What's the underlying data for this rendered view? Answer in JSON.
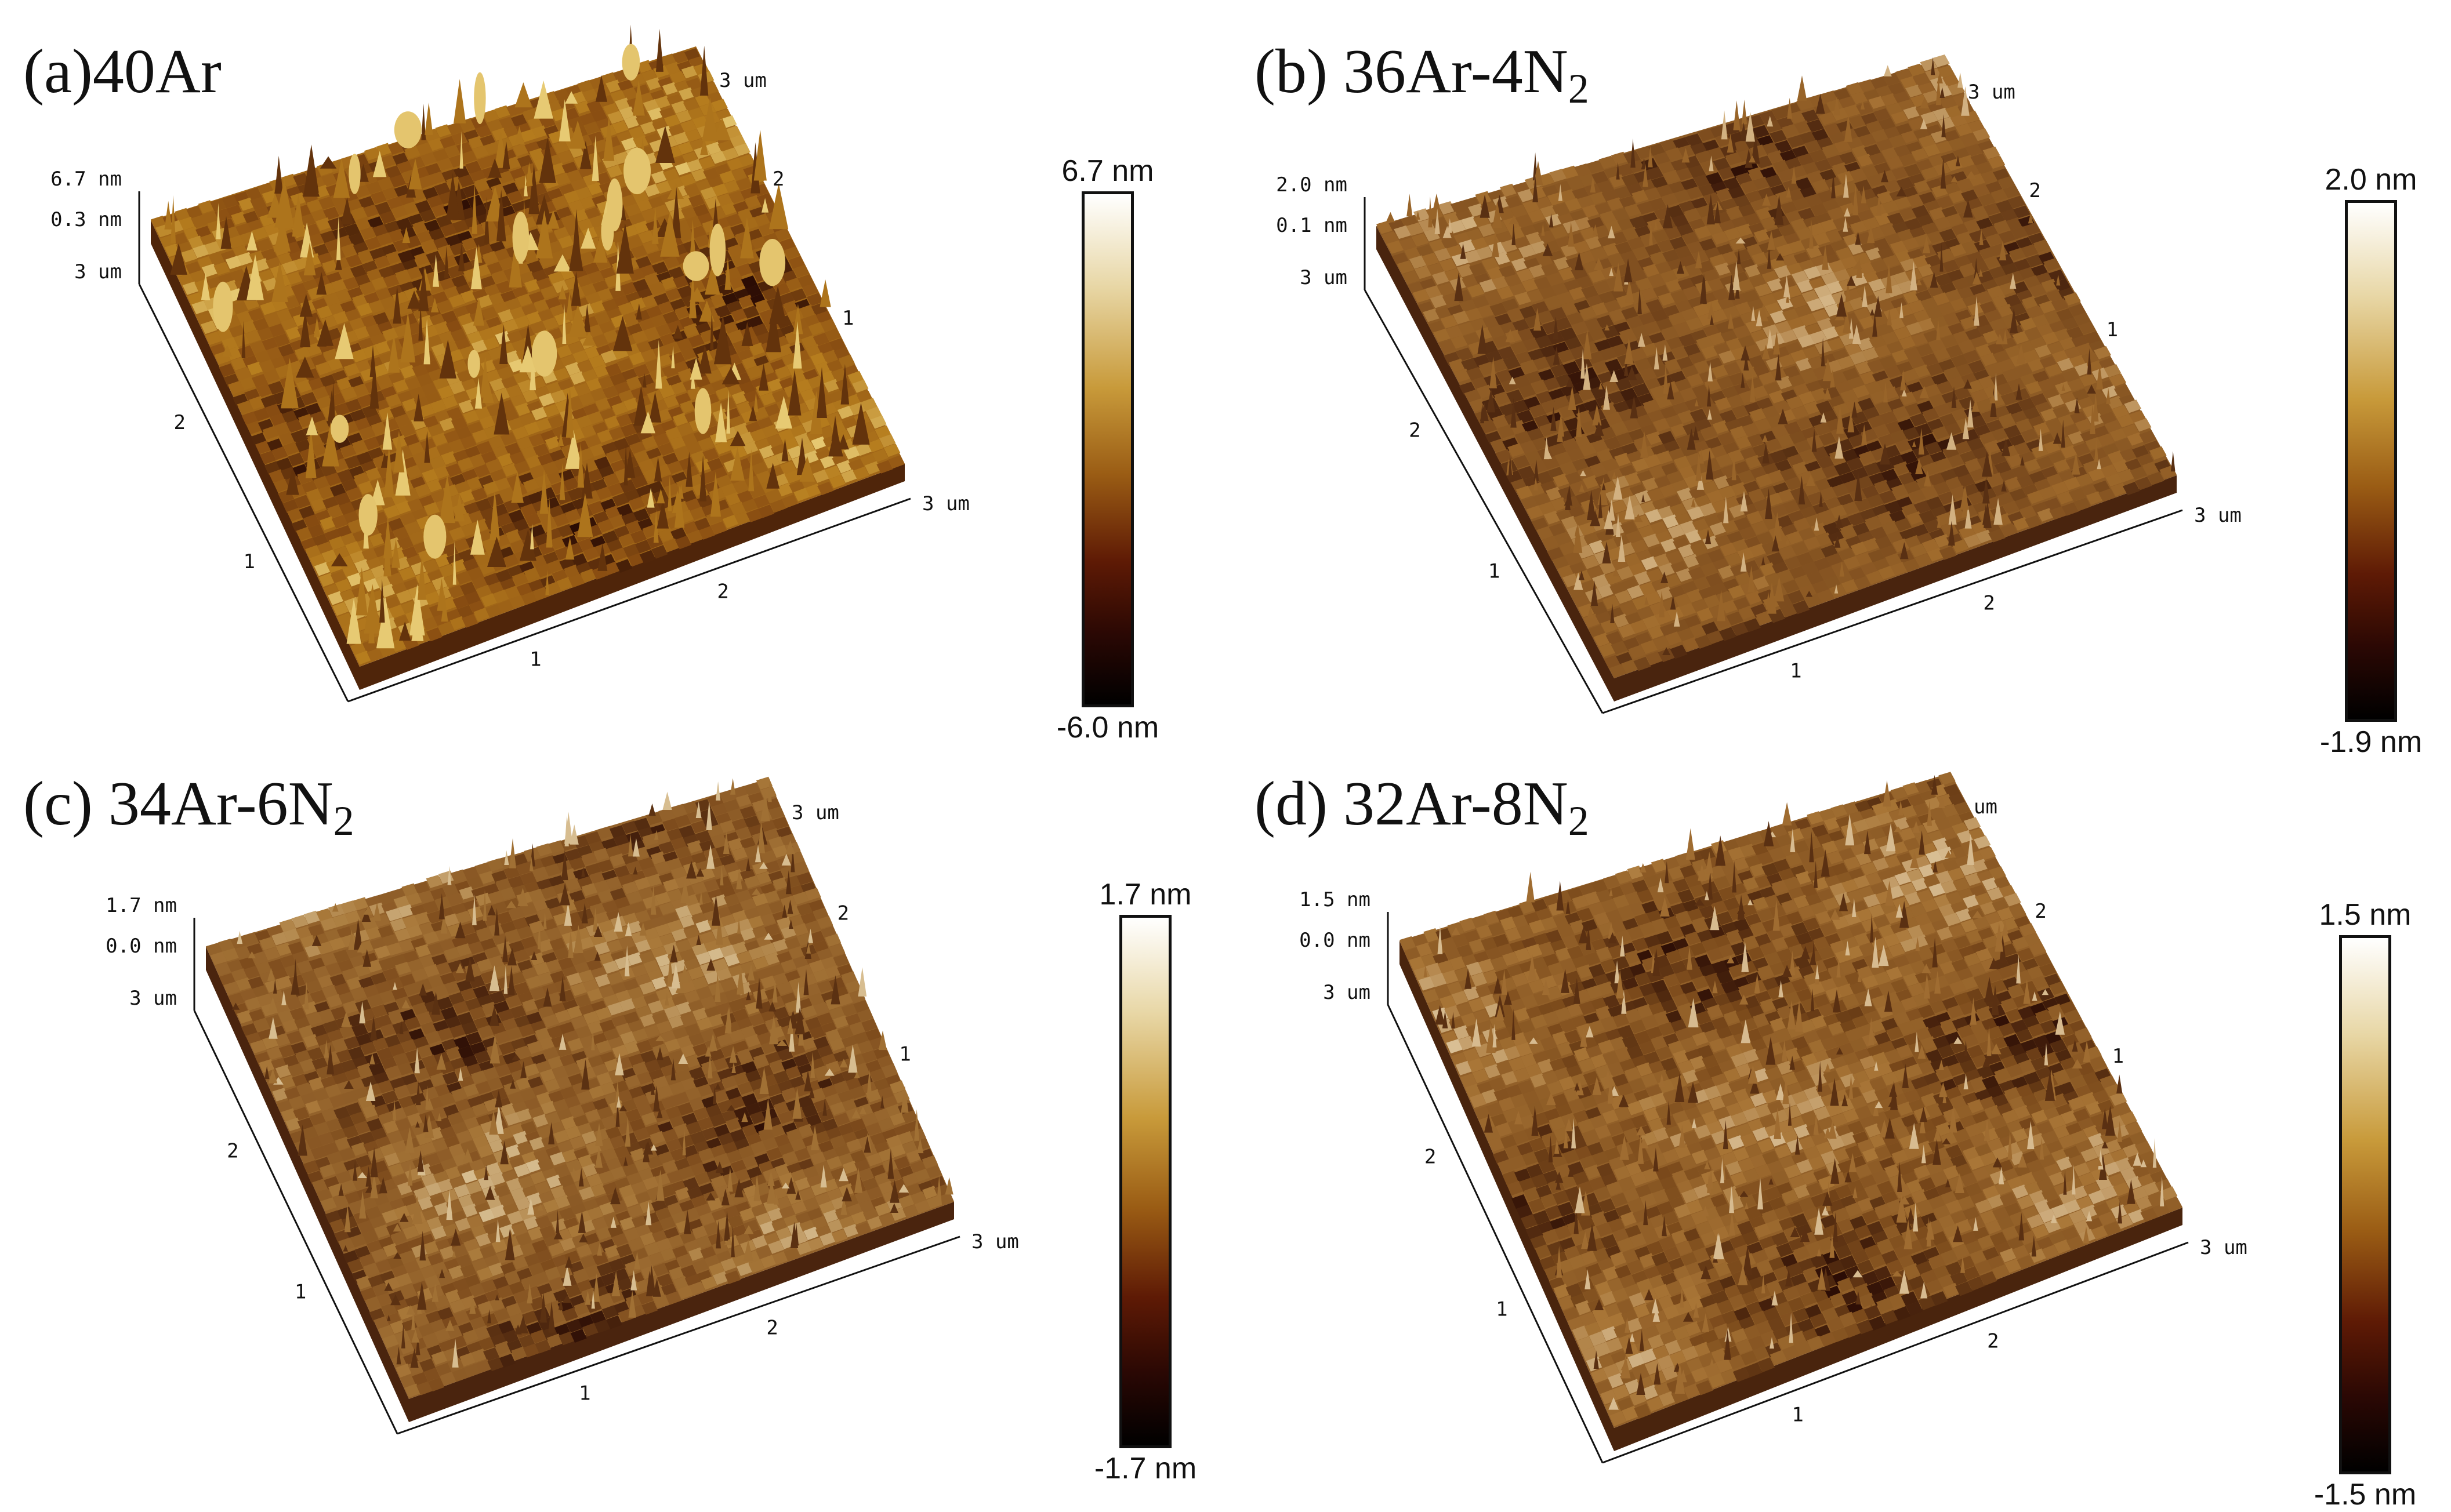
{
  "panels": [
    {
      "id": "a",
      "label": "(a)",
      "name_main": "40Ar",
      "name_sub": "",
      "z_top_label": "6.7 nm",
      "z_mid_label": "0.3 nm",
      "corner_label": "3 um",
      "right_label": "3 um",
      "top_label": "3 um",
      "left_ticks": [
        "2",
        "1"
      ],
      "front_ticks": [
        "1",
        "2"
      ],
      "right_ticks": [
        "2",
        "1"
      ],
      "colorbar_max": "6.7 nm",
      "colorbar_min": "-6.0 nm",
      "surface_base": "#8a4e12",
      "surface_mid": "#b67d1e",
      "surface_high": "#ecd27c"
    },
    {
      "id": "b",
      "label": "(b)",
      "name_main": "36Ar-4N",
      "name_sub": "2",
      "z_top_label": "2.0 nm",
      "z_mid_label": "0.1 nm",
      "corner_label": "3 um",
      "right_label": "3 um",
      "top_label": "3 um",
      "left_ticks": [
        "2",
        "1"
      ],
      "front_ticks": [
        "1",
        "2"
      ],
      "right_ticks": [
        "2",
        "1"
      ],
      "colorbar_max": "2.0 nm",
      "colorbar_min": "-1.9 nm",
      "surface_base": "#7a4a1d",
      "surface_mid": "#a06b2c",
      "surface_high": "#d7b98a"
    },
    {
      "id": "c",
      "label": "(c)",
      "name_main": "34Ar-6N",
      "name_sub": "2",
      "z_top_label": "1.7 nm",
      "z_mid_label": "0.0 nm",
      "corner_label": "3 um",
      "right_label": "3 um",
      "top_label": "3 um",
      "left_ticks": [
        "2",
        "1"
      ],
      "front_ticks": [
        "1",
        "2"
      ],
      "right_ticks": [
        "2",
        "1"
      ],
      "colorbar_max": "1.7 nm",
      "colorbar_min": "-1.7 nm",
      "surface_base": "#7d4b1c",
      "surface_mid": "#a9793a",
      "surface_high": "#dcc59a"
    },
    {
      "id": "d",
      "label": "(d)",
      "name_main": "32Ar-8N",
      "name_sub": "2",
      "z_top_label": "1.5 nm",
      "z_mid_label": "0.0 nm",
      "corner_label": "3 um",
      "right_label": "3 um",
      "top_label": "um",
      "left_ticks": [
        "2",
        "1"
      ],
      "front_ticks": [
        "1",
        "2"
      ],
      "right_ticks": [
        "2",
        "1"
      ],
      "colorbar_max": "1.5 nm",
      "colorbar_min": "-1.5 nm",
      "surface_base": "#7b4a1b",
      "surface_mid": "#a87536",
      "surface_high": "#dcc39a"
    }
  ]
}
